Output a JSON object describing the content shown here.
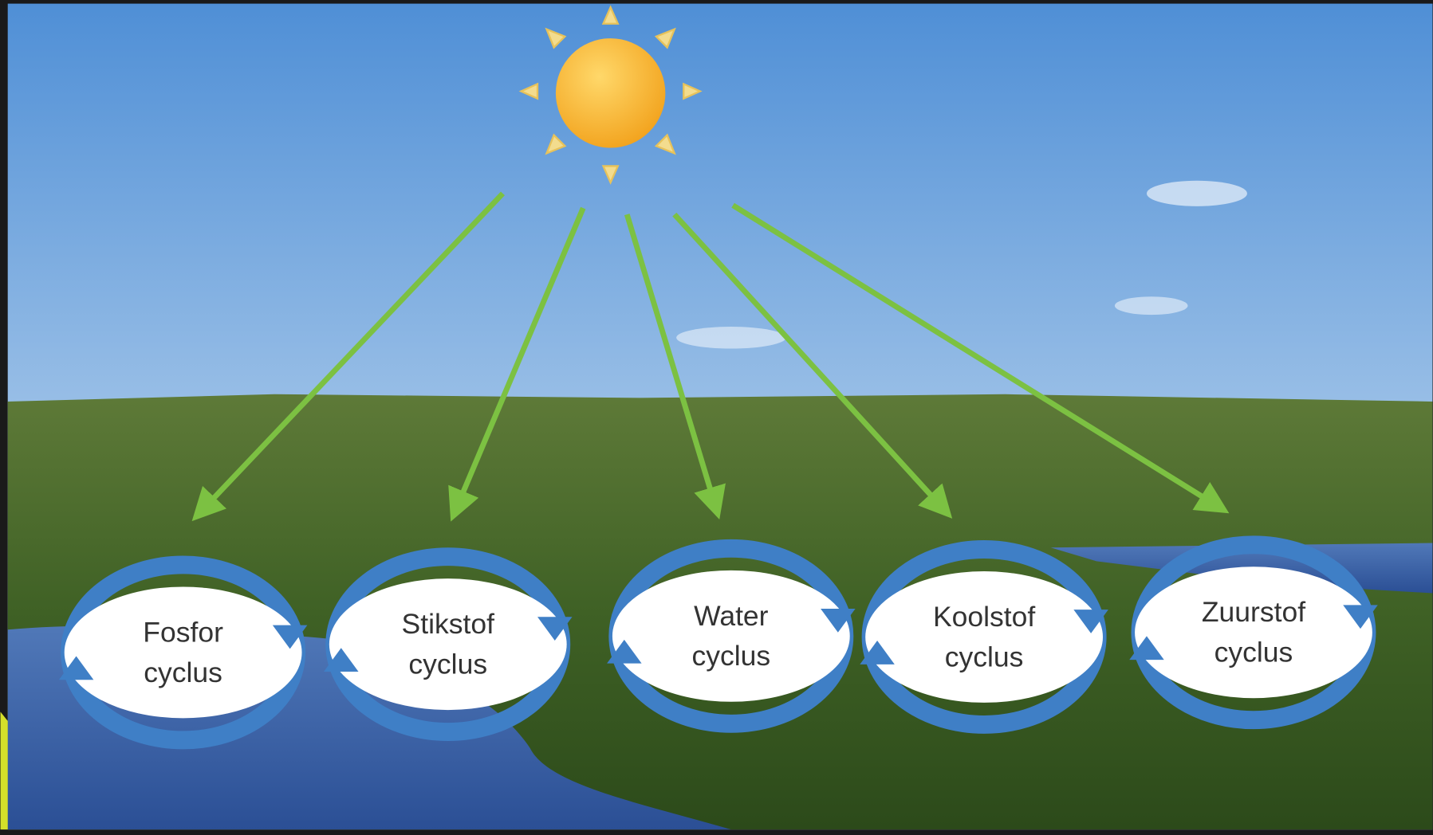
{
  "nodes": [
    {
      "lines": [
        "Fosfor",
        "cyclus"
      ]
    },
    {
      "lines": [
        "Stikstof",
        "cyclus"
      ]
    },
    {
      "lines": [
        "Water",
        "cyclus"
      ]
    },
    {
      "lines": [
        "Koolstof",
        "cyclus"
      ]
    },
    {
      "lines": [
        "Zuurstof",
        "cyclus"
      ]
    }
  ]
}
